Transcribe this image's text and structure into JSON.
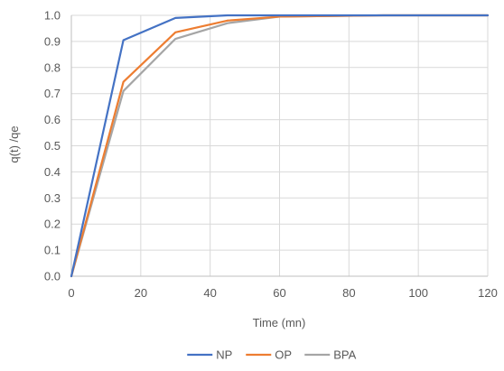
{
  "chart_data": {
    "type": "line",
    "title": "",
    "xlabel": "Time (mn)",
    "ylabel": "q(t) /qe",
    "xlim": [
      0,
      120
    ],
    "ylim": [
      0,
      1.0
    ],
    "x_ticks": [
      "0",
      "20",
      "40",
      "60",
      "80",
      "100",
      "120"
    ],
    "y_ticks": [
      "0.0",
      "0.1",
      "0.2",
      "0.3",
      "0.4",
      "0.5",
      "0.6",
      "0.7",
      "0.8",
      "0.9",
      "1.0"
    ],
    "grid": true,
    "legend_position": "bottom",
    "series": [
      {
        "name": "NP",
        "color": "#4472c4",
        "x": [
          0,
          15,
          30,
          45,
          60,
          90,
          120
        ],
        "y": [
          0.0,
          0.905,
          0.99,
          1.0,
          1.0,
          1.0,
          1.0
        ]
      },
      {
        "name": "OP",
        "color": "#ed7d31",
        "x": [
          0,
          15,
          30,
          45,
          60,
          90,
          120
        ],
        "y": [
          0.0,
          0.745,
          0.935,
          0.98,
          0.995,
          1.0,
          1.0
        ]
      },
      {
        "name": "BPA",
        "color": "#a5a5a5",
        "x": [
          0,
          15,
          30,
          45,
          60,
          90,
          120
        ],
        "y": [
          0.0,
          0.71,
          0.91,
          0.97,
          0.995,
          1.0,
          1.0
        ]
      }
    ]
  }
}
